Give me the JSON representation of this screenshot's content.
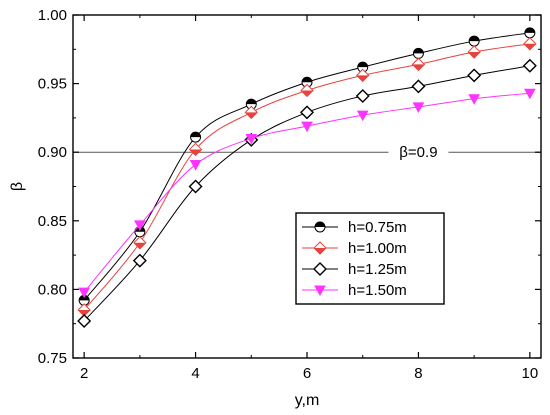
{
  "chart_data": {
    "type": "line",
    "xlabel": "y,m",
    "ylabel": "β",
    "xlim": [
      1.8,
      10.2
    ],
    "ylim": [
      0.75,
      1.0
    ],
    "xticks": [
      2,
      4,
      6,
      8,
      10
    ],
    "yticks": [
      0.75,
      0.8,
      0.85,
      0.9,
      0.95,
      1.0
    ],
    "ytick_labels": [
      "0.75",
      "0.80",
      "0.85",
      "0.90",
      "0.95",
      "1.00"
    ],
    "x": [
      2,
      3,
      4,
      5,
      6,
      7,
      8,
      9,
      10
    ],
    "series": [
      {
        "name": "h=0.75m",
        "marker": "circle",
        "color": "#000000",
        "values": [
          0.792,
          0.842,
          0.911,
          0.935,
          0.951,
          0.962,
          0.972,
          0.981,
          0.987
        ]
      },
      {
        "name": "h=1.00m",
        "marker": "diamond-half",
        "color": "#e8423c",
        "values": [
          0.785,
          0.834,
          0.902,
          0.929,
          0.945,
          0.956,
          0.964,
          0.973,
          0.979
        ]
      },
      {
        "name": "h=1.25m",
        "marker": "diamond-open",
        "color": "#000000",
        "values": [
          0.777,
          0.821,
          0.875,
          0.909,
          0.929,
          0.941,
          0.948,
          0.956,
          0.963
        ]
      },
      {
        "name": "h=1.50m",
        "marker": "triangle-down",
        "color": "#ff33ff",
        "values": [
          0.798,
          0.847,
          0.891,
          0.91,
          0.919,
          0.927,
          0.933,
          0.939,
          0.943
        ]
      }
    ],
    "reference_line": {
      "y": 0.9,
      "label": "β=0.9"
    },
    "legend_position": "center-right"
  }
}
